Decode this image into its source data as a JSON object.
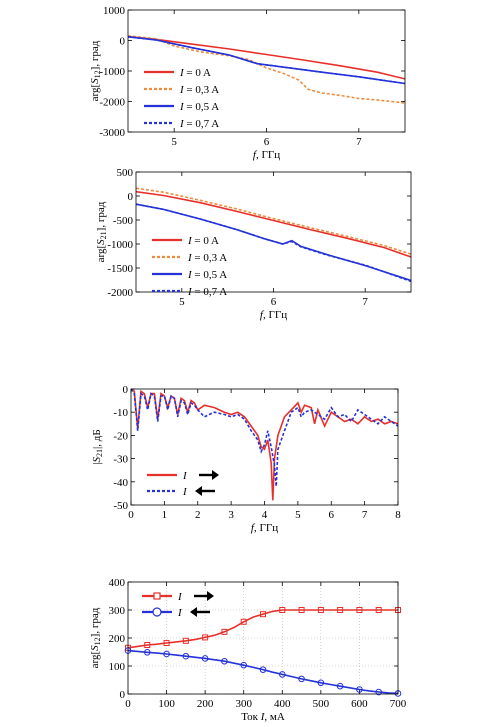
{
  "chart_data": [
    {
      "type": "line",
      "xlabel": "f, ГГц",
      "xlabel_italic": "f",
      "xlabel_rest": ", ГГц",
      "ylabel": "arg[S12], град",
      "ylabel_pre": "arg[",
      "ylabel_sym": "S",
      "ylabel_sub": "12",
      "ylabel_post": "], град",
      "xlim": [
        4.5,
        7.5
      ],
      "ylim": [
        -3000,
        1000
      ],
      "xticks": [
        5,
        6,
        7
      ],
      "yticks": [
        1000,
        0,
        -1000,
        -2000,
        -3000
      ],
      "legend_position": "lower-left",
      "series": [
        {
          "name": "I = 0 A",
          "name_sym": "I",
          "name_rest": " = 0 A",
          "color": "#e8302a",
          "dash": "solid",
          "x": [
            4.5,
            4.8,
            5.2,
            5.6,
            6.0,
            6.4,
            6.8,
            7.2,
            7.5
          ],
          "y": [
            130,
            40,
            -120,
            -280,
            -460,
            -640,
            -830,
            -1040,
            -1260
          ]
        },
        {
          "name": "I = 0,3 A",
          "name_sym": "I",
          "name_rest": " = 0,3 A",
          "color": "#f08a3c",
          "dash": "dot",
          "x": [
            4.5,
            4.8,
            5.0,
            5.3,
            5.6,
            5.8,
            6.0,
            6.2,
            6.35,
            6.45,
            6.6,
            6.8,
            7.0,
            7.2,
            7.5
          ],
          "y": [
            150,
            60,
            -180,
            -380,
            -500,
            -620,
            -900,
            -1100,
            -1300,
            -1600,
            -1720,
            -1800,
            -1900,
            -1950,
            -2050
          ]
        },
        {
          "name": "I = 0,5 A",
          "name_sym": "I",
          "name_rest": " = 0,5 A",
          "color": "#2432d8",
          "dash": "solid",
          "x": [
            4.5,
            4.8,
            5.2,
            5.6,
            5.9,
            6.2,
            6.6,
            7.0,
            7.5
          ],
          "y": [
            120,
            20,
            -240,
            -480,
            -760,
            -880,
            -1040,
            -1190,
            -1410
          ]
        },
        {
          "name": "I = 0,7 A",
          "name_sym": "I",
          "name_rest": " = 0,7 A",
          "color": "#2432d8",
          "dash": "dot",
          "x": [
            4.5,
            4.8,
            5.2,
            5.6,
            5.9,
            6.2,
            6.6,
            7.0,
            7.5
          ],
          "y": [
            120,
            20,
            -240,
            -480,
            -760,
            -880,
            -1040,
            -1190,
            -1410
          ]
        }
      ]
    },
    {
      "type": "line",
      "xlabel": "f, ГГц",
      "xlabel_italic": "f",
      "xlabel_rest": ", ГГц",
      "ylabel": "arg[S21], град",
      "ylabel_pre": "arg[",
      "ylabel_sym": "S",
      "ylabel_sub": "21",
      "ylabel_post": "], град",
      "xlim": [
        4.5,
        7.5
      ],
      "ylim": [
        -2000,
        500
      ],
      "xticks": [
        5,
        6,
        7
      ],
      "yticks": [
        500,
        0,
        -500,
        -1000,
        -1500,
        -2000
      ],
      "legend_position": "lower-left",
      "series": [
        {
          "name": "I = 0 A",
          "name_sym": "I",
          "name_rest": " = 0 A",
          "color": "#e8302a",
          "dash": "solid",
          "x": [
            4.5,
            4.8,
            5.2,
            5.6,
            6.0,
            6.4,
            6.8,
            7.2,
            7.5
          ],
          "y": [
            90,
            10,
            -140,
            -320,
            -510,
            -700,
            -880,
            -1070,
            -1270
          ]
        },
        {
          "name": "I = 0,3 A",
          "name_sym": "I",
          "name_rest": " = 0,3 A",
          "color": "#f08a3c",
          "dash": "dot",
          "x": [
            4.5,
            4.8,
            5.2,
            5.6,
            6.0,
            6.4,
            6.8,
            7.2,
            7.5
          ],
          "y": [
            160,
            80,
            -90,
            -270,
            -470,
            -660,
            -840,
            -1030,
            -1210
          ]
        },
        {
          "name": "I = 0,5 A",
          "name_sym": "I",
          "name_rest": " = 0,5 A",
          "color": "#2432d8",
          "dash": "solid",
          "x": [
            4.5,
            4.8,
            5.2,
            5.6,
            5.9,
            6.1,
            6.2,
            6.3,
            6.6,
            7.0,
            7.5
          ],
          "y": [
            -170,
            -280,
            -480,
            -700,
            -890,
            -1000,
            -930,
            -1050,
            -1230,
            -1450,
            -1760
          ]
        },
        {
          "name": "I = 0,7 A",
          "name_sym": "I",
          "name_rest": " = 0,7 A",
          "color": "#2432d8",
          "dash": "dot",
          "x": [
            4.5,
            4.8,
            5.2,
            5.6,
            5.9,
            6.1,
            6.2,
            6.3,
            6.6,
            7.0,
            7.5
          ],
          "y": [
            -170,
            -280,
            -480,
            -700,
            -890,
            -1000,
            -950,
            -1060,
            -1240,
            -1440,
            -1780
          ]
        }
      ]
    },
    {
      "type": "line",
      "xlabel": "f, ГГц",
      "xlabel_italic": "f",
      "xlabel_rest": ", ГГц",
      "ylabel": "|S21|, дБ",
      "ylabel_pre": "|",
      "ylabel_sym": "S",
      "ylabel_sub": "21",
      "ylabel_post": "|, дБ",
      "xlim": [
        0,
        8
      ],
      "ylim": [
        -50,
        0
      ],
      "xticks": [
        0,
        1,
        2,
        3,
        4,
        5,
        6,
        7,
        8
      ],
      "yticks": [
        0,
        -10,
        -20,
        -30,
        -40,
        -50
      ],
      "legend_position": "lower-left",
      "series": [
        {
          "name": "I →",
          "name_sym": "I",
          "name_rest": "",
          "arrow": "right",
          "color": "#e8302a",
          "dash": "solid",
          "x": [
            0,
            0.1,
            0.2,
            0.3,
            0.4,
            0.5,
            0.6,
            0.7,
            0.8,
            0.9,
            1.0,
            1.1,
            1.2,
            1.3,
            1.4,
            1.5,
            1.6,
            1.7,
            1.8,
            1.9,
            2.0,
            2.2,
            2.5,
            2.8,
            3.0,
            3.2,
            3.4,
            3.6,
            3.8,
            3.9,
            4.0,
            4.1,
            4.2,
            4.25,
            4.3,
            4.4,
            4.6,
            4.8,
            5.0,
            5.1,
            5.2,
            5.4,
            5.5,
            5.6,
            5.8,
            6.0,
            6.2,
            6.4,
            6.6,
            6.8,
            7.0,
            7.2,
            7.4,
            7.6,
            7.8,
            8.0
          ],
          "y": [
            0,
            -1,
            -17,
            -1,
            -2,
            -8,
            -2,
            -2,
            -13,
            -2,
            -3,
            -8,
            -3,
            -4,
            -11,
            -4,
            -5,
            -10,
            -5,
            -6,
            -9,
            -7,
            -8,
            -10,
            -11,
            -10,
            -12,
            -16,
            -20,
            -25,
            -26,
            -22,
            -32,
            -48,
            -30,
            -20,
            -12,
            -9,
            -6,
            -10,
            -7,
            -8,
            -15,
            -9,
            -16,
            -10,
            -12,
            -14,
            -13,
            -15,
            -12,
            -14,
            -13,
            -15,
            -14,
            -15
          ]
        },
        {
          "name": "I ←",
          "name_sym": "I",
          "name_rest": "",
          "arrow": "left",
          "color": "#2432d8",
          "dash": "dot",
          "x": [
            0,
            0.1,
            0.2,
            0.3,
            0.4,
            0.5,
            0.6,
            0.7,
            0.8,
            0.9,
            1.0,
            1.1,
            1.2,
            1.3,
            1.4,
            1.5,
            1.6,
            1.7,
            1.8,
            1.9,
            2.0,
            2.2,
            2.5,
            2.8,
            3.0,
            3.2,
            3.4,
            3.6,
            3.8,
            3.9,
            4.0,
            4.1,
            4.2,
            4.3,
            4.35,
            4.4,
            4.6,
            4.8,
            5.0,
            5.1,
            5.2,
            5.4,
            5.6,
            5.8,
            6.0,
            6.2,
            6.4,
            6.6,
            6.8,
            7.0,
            7.2,
            7.4,
            7.6,
            7.8,
            8.0
          ],
          "y": [
            0,
            -2,
            -18,
            -2,
            -3,
            -9,
            -2,
            -3,
            -14,
            -3,
            -3,
            -9,
            -3,
            -4,
            -12,
            -5,
            -6,
            -11,
            -6,
            -7,
            -9,
            -12,
            -10,
            -11,
            -12,
            -11,
            -13,
            -18,
            -22,
            -27,
            -24,
            -18,
            -25,
            -33,
            -42,
            -26,
            -18,
            -10,
            -8,
            -12,
            -10,
            -9,
            -11,
            -13,
            -8,
            -12,
            -11,
            -14,
            -9,
            -11,
            -13,
            -15,
            -12,
            -14,
            -16
          ]
        }
      ]
    },
    {
      "type": "line",
      "xlabel": "Ток I, мА",
      "xlabel_pre": "Ток ",
      "xlabel_italic": "I",
      "xlabel_rest": ", мА",
      "ylabel": "arg[S12], град",
      "ylabel_pre": "arg[",
      "ylabel_sym": "S",
      "ylabel_sub": "12",
      "ylabel_post": "], град",
      "xlim": [
        0,
        700
      ],
      "ylim": [
        0,
        400
      ],
      "xticks": [
        0,
        100,
        200,
        300,
        400,
        500,
        600,
        700
      ],
      "yticks": [
        400,
        300,
        200,
        100,
        0
      ],
      "grid": true,
      "legend_position": "top-left",
      "series": [
        {
          "name": "I →",
          "name_sym": "I",
          "name_rest": "",
          "arrow": "right",
          "color": "#e8302a",
          "marker": "square",
          "dash": "solid",
          "x": [
            0,
            25,
            50,
            75,
            100,
            125,
            150,
            175,
            200,
            225,
            250,
            275,
            300,
            325,
            350,
            375,
            400,
            425,
            450,
            475,
            500,
            525,
            550,
            575,
            600,
            625,
            650,
            675,
            700
          ],
          "y": [
            165,
            170,
            175,
            178,
            182,
            186,
            190,
            195,
            202,
            210,
            222,
            238,
            258,
            275,
            285,
            295,
            300,
            300,
            300,
            300,
            300,
            300,
            300,
            300,
            300,
            300,
            300,
            300,
            300
          ]
        },
        {
          "name": "I ←",
          "name_sym": "I",
          "name_rest": "",
          "arrow": "left",
          "color": "#2432d8",
          "marker": "circle",
          "dash": "solid",
          "x": [
            0,
            25,
            50,
            75,
            100,
            125,
            150,
            175,
            200,
            225,
            250,
            275,
            300,
            325,
            350,
            375,
            400,
            425,
            450,
            475,
            500,
            525,
            550,
            575,
            600,
            625,
            650,
            675,
            700
          ],
          "y": [
            155,
            152,
            149,
            146,
            143,
            139,
            135,
            131,
            127,
            122,
            117,
            110,
            103,
            95,
            87,
            78,
            70,
            62,
            54,
            47,
            40,
            34,
            28,
            22,
            16,
            11,
            7,
            4,
            2
          ]
        }
      ]
    }
  ]
}
